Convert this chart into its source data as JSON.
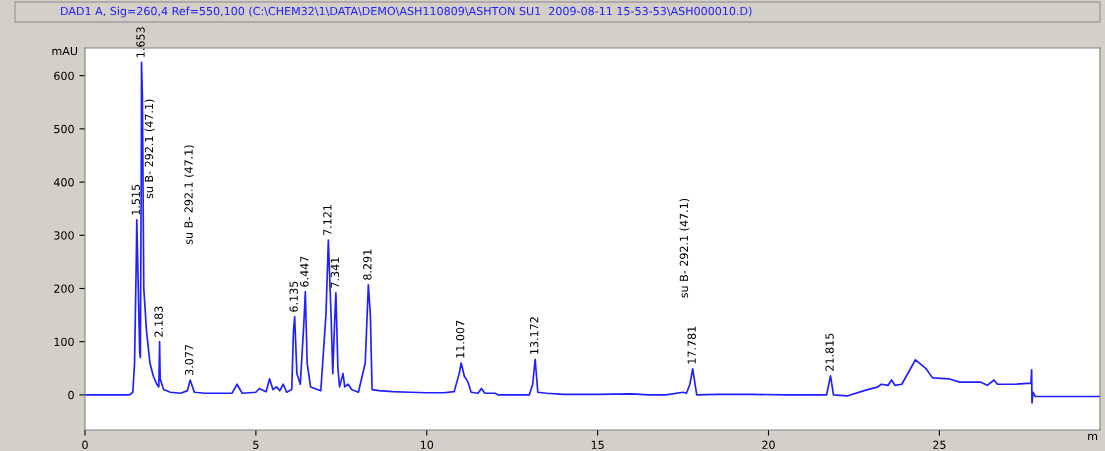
{
  "chart_data": {
    "type": "line",
    "title": "DAD1 A, Sig=260,4 Ref=550,100 (C:\\CHEM32\\1\\DATA\\DEMO\\ASH110809\\ASHTON SU1  2009-08-11 15-53-53\\ASH000010.D)",
    "xlabel": "m",
    "ylabel": "mAU",
    "xlim": [
      0,
      29.7
    ],
    "xticks": [
      0,
      5,
      10,
      15,
      20,
      25
    ],
    "ylim": [
      -66,
      652
    ],
    "yticks": [
      0,
      100,
      200,
      300,
      400,
      500,
      600
    ],
    "grid": false,
    "marker": "none",
    "line_style": "solid",
    "series": [
      {
        "color": "#1f1fff",
        "x": [
          0,
          1.3,
          1.4,
          1.45,
          1.5,
          1.515,
          1.56,
          1.6,
          1.62,
          1.65,
          1.653,
          1.68,
          1.72,
          1.8,
          1.9,
          2.0,
          2.1,
          2.16,
          2.183,
          2.2,
          2.3,
          2.5,
          2.8,
          3.0,
          3.077,
          3.2,
          3.5,
          4.0,
          4.3,
          4.45,
          4.6,
          5.0,
          5.1,
          5.3,
          5.4,
          5.5,
          5.6,
          5.7,
          5.8,
          5.9,
          6.05,
          6.1,
          6.135,
          6.2,
          6.3,
          6.4,
          6.447,
          6.5,
          6.6,
          6.8,
          6.9,
          7.05,
          7.121,
          7.2,
          7.25,
          7.3,
          7.341,
          7.4,
          7.45,
          7.55,
          7.6,
          7.7,
          7.8,
          8.0,
          8.2,
          8.291,
          8.35,
          8.4,
          8.6,
          9.0,
          9.5,
          10.0,
          10.5,
          10.8,
          10.95,
          11.007,
          11.1,
          11.2,
          11.3,
          11.5,
          11.6,
          11.7,
          12.0,
          12.1,
          13.0,
          13.1,
          13.172,
          13.25,
          13.5,
          14.0,
          15.0,
          16.0,
          16.5,
          17.0,
          17.5,
          17.6,
          17.7,
          17.781,
          17.9,
          18.5,
          19.5,
          20.5,
          21.7,
          21.815,
          21.9,
          22.3,
          22.8,
          23.2,
          23.3,
          23.5,
          23.6,
          23.7,
          23.9,
          24.3,
          24.6,
          24.8,
          25.3,
          25.6,
          26.2,
          26.4,
          26.6,
          26.7,
          27.2,
          27.68,
          27.7,
          27.71,
          27.74,
          27.8,
          29.7
        ],
        "values": [
          0,
          0,
          5,
          60,
          250,
          329,
          200,
          80,
          70,
          480,
          625,
          560,
          200,
          120,
          60,
          35,
          20,
          15,
          100,
          30,
          10,
          5,
          3,
          8,
          28,
          5,
          3,
          3,
          3,
          20,
          3,
          5,
          12,
          6,
          30,
          10,
          15,
          8,
          20,
          5,
          10,
          120,
          147,
          40,
          20,
          130,
          194,
          60,
          15,
          10,
          8,
          150,
          291,
          150,
          40,
          130,
          192,
          50,
          15,
          40,
          15,
          20,
          10,
          5,
          60,
          207,
          150,
          10,
          8,
          6,
          5,
          4,
          4,
          6,
          40,
          60,
          35,
          25,
          5,
          3,
          12,
          3,
          3,
          0,
          0,
          20,
          67,
          5,
          3,
          1,
          1,
          2,
          0,
          0,
          5,
          3,
          20,
          49,
          0,
          1,
          1,
          0,
          0,
          36,
          0,
          -2,
          8,
          15,
          20,
          18,
          28,
          18,
          20,
          66,
          50,
          32,
          30,
          24,
          24,
          18,
          28,
          20,
          20,
          22,
          47,
          -15,
          5,
          -3,
          -3
        ]
      }
    ],
    "annotations": [
      {
        "text": "1.515",
        "x": 1.515,
        "y": 329
      },
      {
        "text": "1.653",
        "x": 1.653,
        "y": 625
      },
      "su B- 292.1 (47.1)",
      {
        "text": "2.183",
        "x": 2.183,
        "y": 100
      },
      "su B- 292.1 (47.1)",
      {
        "text": "3.077",
        "x": 3.077,
        "y": 28
      },
      {
        "text": "6.135",
        "x": 6.135,
        "y": 147
      },
      {
        "text": "6.447",
        "x": 6.447,
        "y": 194
      },
      {
        "text": "7.121",
        "x": 7.121,
        "y": 291
      },
      {
        "text": "7.341",
        "x": 7.341,
        "y": 192
      },
      {
        "text": "8.291",
        "x": 8.291,
        "y": 207
      },
      {
        "text": "11.007",
        "x": 11.007,
        "y": 60
      },
      {
        "text": "13.172",
        "x": 13.172,
        "y": 67
      },
      "su B- 292.1 (47.1)",
      {
        "text": "17.781",
        "x": 17.781,
        "y": 49
      },
      {
        "text": "21.815",
        "x": 21.815,
        "y": 36
      }
    ]
  }
}
